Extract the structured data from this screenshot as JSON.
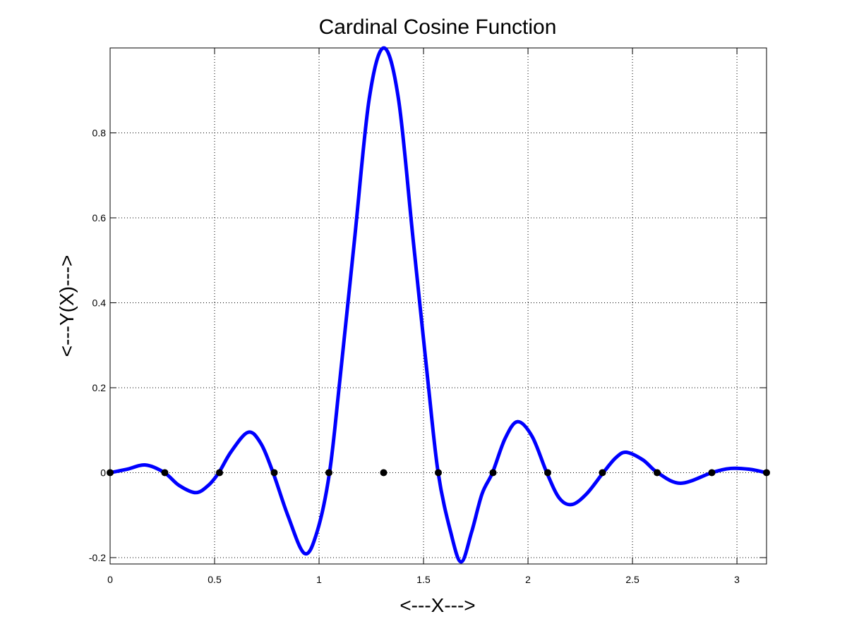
{
  "chart_data": {
    "type": "line",
    "title": "Cardinal Cosine Function",
    "xlabel": "<---X--->",
    "ylabel": "<---Y(X)--->",
    "xlim": [
      0,
      3.14159
    ],
    "ylim": [
      -0.215,
      1.0
    ],
    "x_ticks": [
      0,
      0.5,
      1,
      1.5,
      2,
      2.5,
      3
    ],
    "x_tick_labels": [
      "0",
      "0.5",
      "1",
      "1.5",
      "2",
      "2.5",
      "3"
    ],
    "y_ticks": [
      -0.2,
      0,
      0.2,
      0.4,
      0.6,
      0.8
    ],
    "y_tick_labels": [
      "-0.2",
      "0",
      "0.2",
      "0.4",
      "0.6",
      "0.8"
    ],
    "grid": true,
    "grid_style": "dotted",
    "colors": {
      "line": "#0000ff",
      "markers": "#000000",
      "axes": "#000000",
      "grid": "#000000"
    },
    "series": [
      {
        "kind": "line",
        "x": [
          0,
          0.08,
          0.17,
          0.26,
          0.33,
          0.41,
          0.47,
          0.52,
          0.58,
          0.66,
          0.72,
          0.78,
          0.85,
          0.93,
          0.99,
          1.05,
          1.1,
          1.17,
          1.24,
          1.31,
          1.38,
          1.45,
          1.52,
          1.57,
          1.63,
          1.68,
          1.73,
          1.78,
          1.83,
          1.89,
          1.95,
          2.02,
          2.09,
          2.15,
          2.21,
          2.28,
          2.36,
          2.42,
          2.47,
          2.55,
          2.62,
          2.73,
          2.88,
          2.97,
          3.06,
          3.14
        ],
        "y": [
          0,
          0.008,
          0.018,
          0,
          -0.03,
          -0.047,
          -0.03,
          0,
          0.05,
          0.095,
          0.07,
          0,
          -0.1,
          -0.19,
          -0.14,
          0,
          0.22,
          0.55,
          0.88,
          1.0,
          0.88,
          0.55,
          0.22,
          0,
          -0.14,
          -0.21,
          -0.14,
          -0.05,
          0,
          0.08,
          0.12,
          0.085,
          0,
          -0.06,
          -0.075,
          -0.05,
          0,
          0.035,
          0.048,
          0.03,
          0,
          -0.025,
          0,
          0.01,
          0.008,
          0
        ]
      },
      {
        "kind": "points",
        "x": [
          0,
          0.2618,
          0.5236,
          0.7854,
          1.0472,
          1.309,
          1.5708,
          1.8326,
          2.0944,
          2.3562,
          2.618,
          2.8798,
          3.1416
        ],
        "y": [
          0,
          0,
          0,
          0,
          0,
          0,
          0,
          0,
          0,
          0,
          0,
          0,
          0
        ]
      }
    ]
  }
}
